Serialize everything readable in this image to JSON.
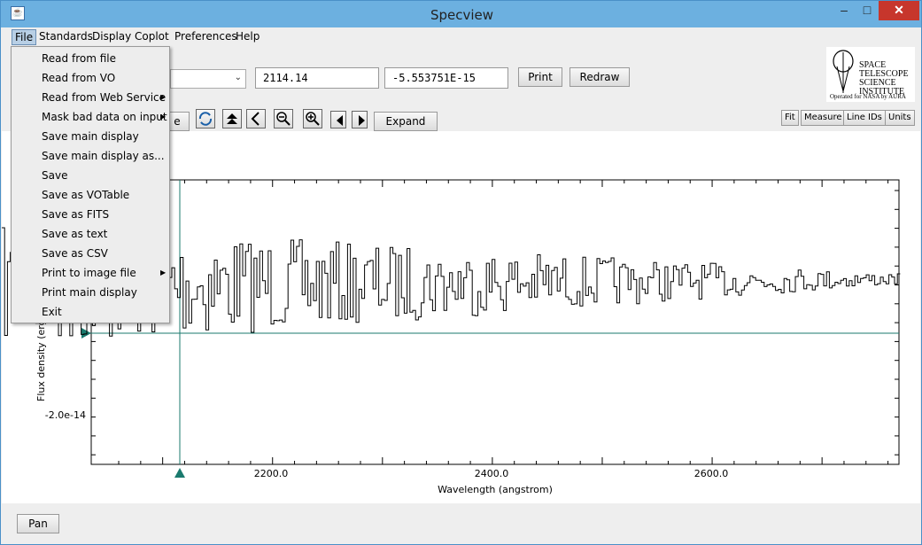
{
  "window": {
    "title": "Specview",
    "app_icon": "java-cup-icon",
    "min_glyph": "–",
    "max_glyph": "□",
    "close_glyph": "✕"
  },
  "menubar": {
    "items": [
      "File",
      "Standards",
      "Display",
      "Coplot",
      "Preferences",
      "Help"
    ]
  },
  "file_menu": {
    "items": [
      {
        "label": "Read from file",
        "submenu": false
      },
      {
        "label": "Read from VO",
        "submenu": false
      },
      {
        "label": "Read from Web Service",
        "submenu": true
      },
      {
        "label": "Mask bad data on input",
        "submenu": true
      },
      {
        "label": "Save main display",
        "submenu": false
      },
      {
        "label": "Save main display as...",
        "submenu": false
      },
      {
        "label": "Save",
        "submenu": false
      },
      {
        "label": "Save as VOTable",
        "submenu": false
      },
      {
        "label": "Save as FITS",
        "submenu": false
      },
      {
        "label": "Save as text",
        "submenu": false
      },
      {
        "label": "Save as CSV",
        "submenu": false
      },
      {
        "label": "Print to image file",
        "submenu": true
      },
      {
        "label": "Print main display",
        "submenu": false
      },
      {
        "label": "Exit",
        "submenu": false
      }
    ],
    "submenu_glyph": "▶"
  },
  "toolbar": {
    "cursor_x_value": "2114.14",
    "cursor_y_value": "-5.553751E-15",
    "print_label": "Print",
    "redraw_label": "Redraw",
    "expand_label": "Expand",
    "partial_button_label": "e",
    "combo_arrow": "⌄",
    "fit_label": "Fit",
    "measure_label": "Measure",
    "line_ids_label": "Line IDs",
    "units_label": "Units"
  },
  "logo": {
    "lines": [
      "SPACE",
      "TELESCOPE",
      "SCIENCE",
      "INSTITUTE"
    ],
    "subtitle": "Operated for NASA by AURA"
  },
  "chart_data": {
    "type": "line",
    "xlabel": "Wavelength (angstrom)",
    "ylabel": "Flux density (erg/",
    "x_ticks": [
      "2200.0",
      "2400.0",
      "2600.0"
    ],
    "y_ticks": [
      "-2.0e-14"
    ],
    "xlim": [
      2035,
      2770
    ],
    "cursor_x": 2114.14,
    "series_color": "#000000",
    "cursor_color": "#1a7a6e"
  },
  "statusbar": {
    "pan_label": "Pan"
  }
}
